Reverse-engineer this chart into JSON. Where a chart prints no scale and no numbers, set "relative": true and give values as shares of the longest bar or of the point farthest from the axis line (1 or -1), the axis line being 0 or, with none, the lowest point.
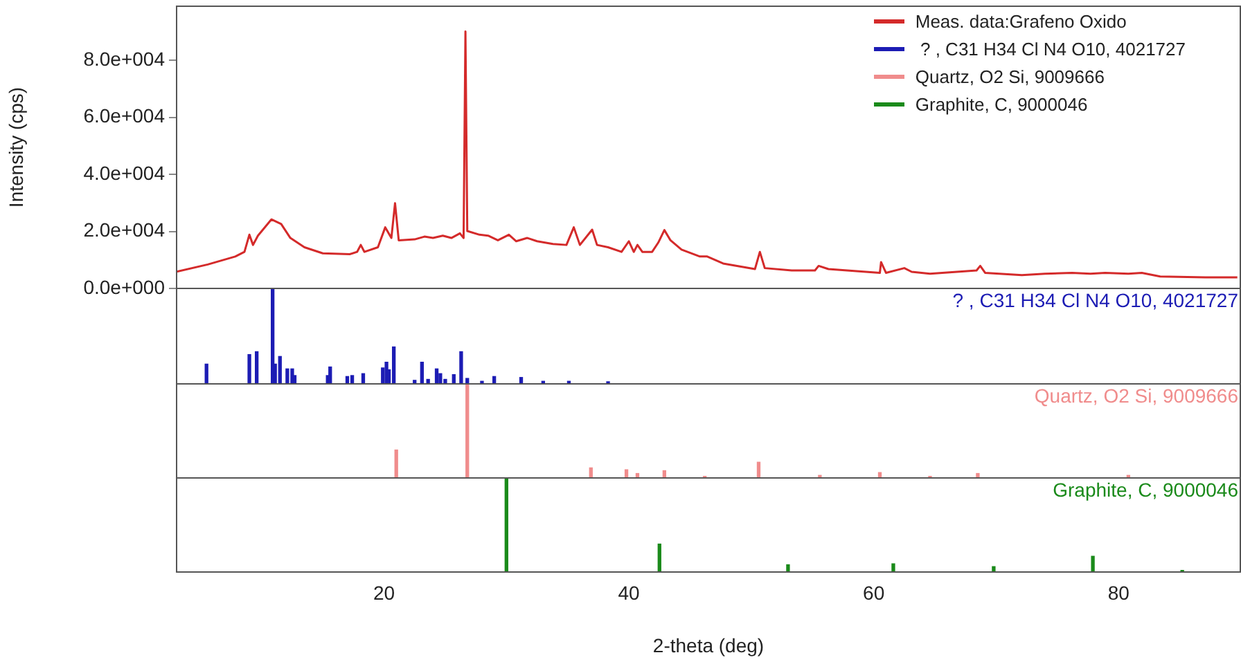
{
  "chart_data": [
    {
      "type": "line",
      "ylabel": "Intensity (cps)",
      "xlim": [
        3,
        90
      ],
      "ylim": [
        0,
        99000
      ],
      "yticks": [
        {
          "value": 0,
          "label": "0.0e+000"
        },
        {
          "value": 20000,
          "label": "2.0e+004"
        },
        {
          "value": 40000,
          "label": "4.0e+004"
        },
        {
          "value": 60000,
          "label": "6.0e+004"
        },
        {
          "value": 80000,
          "label": "8.0e+004"
        }
      ],
      "tick_labels": "y",
      "grid": false,
      "legend": "top right",
      "marker": "none",
      "series": [
        {
          "name": "Meas. data:Grafeno Oxido",
          "color": "#d42a2a",
          "x": [
            3.0,
            5.6,
            7.85,
            8.6,
            9.0,
            9.3,
            9.7,
            10.8,
            11.6,
            12.35,
            13.5,
            15.0,
            17.2,
            17.8,
            18.1,
            18.4,
            19.5,
            20.1,
            20.6,
            20.9,
            21.2,
            22.5,
            23.3,
            24.0,
            24.8,
            25.5,
            26.2,
            26.5,
            26.65,
            26.8,
            27.8,
            28.5,
            29.3,
            30.2,
            30.8,
            31.7,
            32.5,
            33.8,
            34.9,
            35.5,
            36.0,
            37.0,
            37.4,
            38.3,
            39.4,
            40.0,
            40.4,
            40.7,
            41.1,
            41.9,
            42.4,
            42.9,
            43.4,
            44.3,
            45.8,
            46.4,
            47.7,
            50.3,
            50.7,
            51.1,
            53.3,
            55.2,
            55.5,
            56.3,
            60.5,
            60.6,
            61.0,
            62.5,
            63.1,
            64.6,
            68.4,
            68.7,
            69.1,
            72.1,
            74.0,
            76.2,
            77.7,
            78.9,
            80.8,
            81.9,
            83.4,
            87.1,
            89.7
          ],
          "values": [
            5860,
            8450,
            11230,
            12850,
            18880,
            15290,
            18540,
            24240,
            22610,
            17730,
            14480,
            12360,
            12040,
            12850,
            15290,
            12850,
            14480,
            21470,
            17730,
            29930,
            16920,
            17240,
            18210,
            17730,
            18540,
            17730,
            19360,
            17730,
            90130,
            20170,
            18880,
            18540,
            16920,
            18880,
            16590,
            17730,
            16590,
            15620,
            15290,
            21470,
            15290,
            20660,
            15290,
            14480,
            12850,
            16590,
            12850,
            15290,
            12850,
            12850,
            16100,
            20500,
            16920,
            13670,
            11230,
            11230,
            8780,
            6830,
            12850,
            7170,
            6340,
            6340,
            7950,
            6830,
            5510,
            9270,
            5510,
            7170,
            5860,
            5220,
            6340,
            7950,
            5510,
            4730,
            5220,
            5510,
            5220,
            5510,
            5220,
            5510,
            4250,
            3900,
            3900
          ]
        }
      ]
    },
    {
      "type": "bar",
      "relative": true,
      "xlim": [
        3,
        90
      ],
      "tick_labels": false,
      "series": [
        {
          "name": " ? , C31 H34 Cl N4 O10, 4021727",
          "color": "#1c1cb4",
          "x": [
            5.5,
            9.0,
            9.6,
            10.9,
            11.1,
            11.5,
            12.1,
            12.5,
            12.7,
            15.4,
            15.6,
            17.0,
            17.4,
            18.3,
            19.9,
            20.2,
            20.4,
            20.8,
            22.5,
            23.1,
            23.6,
            24.3,
            24.6,
            25.0,
            25.7,
            26.3,
            26.8,
            28.0,
            29.0,
            31.2,
            33.0,
            35.1,
            38.3
          ],
          "values": [
            0.2,
            0.3,
            0.33,
            1,
            0.2,
            0.28,
            0.15,
            0.15,
            0.08,
            0.08,
            0.17,
            0.07,
            0.08,
            0.1,
            0.16,
            0.22,
            0.14,
            0.38,
            0.03,
            0.22,
            0.04,
            0.15,
            0.1,
            0.04,
            0.09,
            0.33,
            0.05,
            0.02,
            0.07,
            0.06,
            0.02,
            0.02,
            0.015
          ]
        }
      ]
    },
    {
      "type": "bar",
      "relative": true,
      "xlim": [
        3,
        90
      ],
      "tick_labels": false,
      "series": [
        {
          "name": "Quartz, O2 Si, 9009666",
          "color": "#f08c8c",
          "x": [
            21.0,
            26.8,
            36.9,
            39.8,
            40.7,
            42.9,
            46.2,
            50.6,
            55.6,
            60.5,
            64.6,
            68.5,
            80.8
          ],
          "values": [
            0.29,
            1,
            0.1,
            0.08,
            0.04,
            0.07,
            0.01,
            0.16,
            0.02,
            0.05,
            0.01,
            0.04,
            0.02
          ]
        }
      ]
    },
    {
      "type": "bar",
      "relative": true,
      "xlim": [
        3,
        90
      ],
      "xticks": [
        20,
        40,
        60,
        80
      ],
      "xlabel": "2-theta (deg)",
      "tick_labels": "x",
      "series": [
        {
          "name": "Graphite, C, 9000046",
          "color": "#1a8a1a",
          "x": [
            30.0,
            42.5,
            53.0,
            61.6,
            69.8,
            77.9,
            85.2
          ],
          "values": [
            1,
            0.29,
            0.07,
            0.08,
            0.05,
            0.16,
            0.01
          ]
        }
      ]
    }
  ]
}
